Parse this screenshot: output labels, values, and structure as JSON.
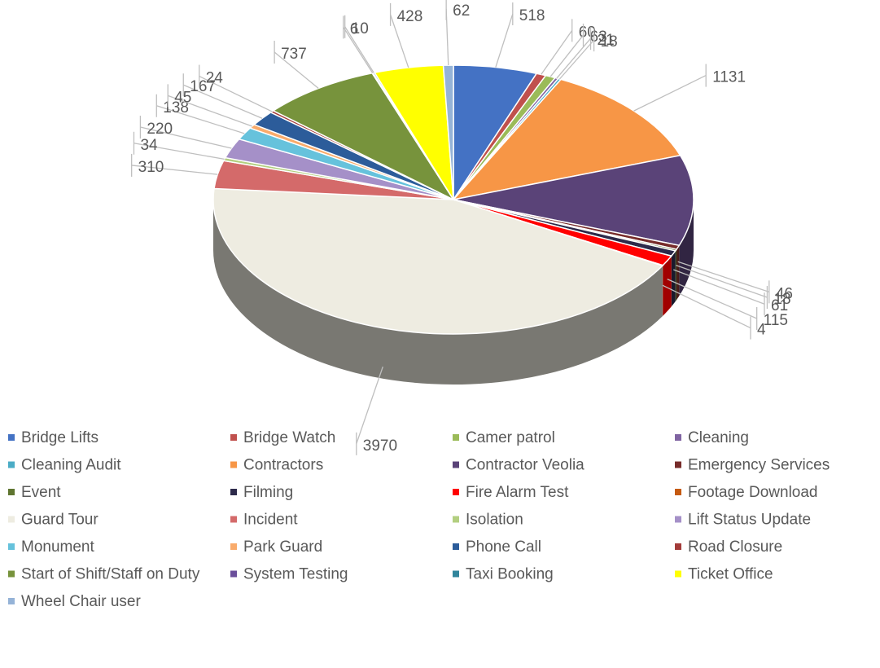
{
  "chart_data": {
    "type": "pie",
    "categories": [
      "Bridge Lifts",
      "Bridge Watch",
      "Camer patrol",
      "Cleaning",
      "Cleaning Audit",
      "Contractors",
      "Contractor Veolia",
      "Emergency Services",
      "Event",
      "Filming",
      "Fire Alarm Test",
      "Footage Download",
      "Guard Tour",
      "Incident",
      "Isolation",
      "Lift Status Update",
      "Monument",
      "Park Guard",
      "Phone Call",
      "Road Closure",
      "Start of Shift/Staff on Duty",
      "System Testing",
      "Taxi Booking",
      "Ticket Office",
      "Wheel Chair user"
    ],
    "values": [
      518,
      60,
      63,
      21,
      18,
      1131,
      1000,
      46,
      18,
      61,
      115,
      4,
      3970,
      310,
      34,
      220,
      138,
      45,
      167,
      24,
      737,
      6,
      10,
      428,
      62
    ],
    "value_labels": [
      "518",
      "60",
      "63",
      "21",
      "18",
      "1131",
      null,
      "46",
      "18",
      "61",
      "115",
      "4",
      "3970",
      "310",
      "34",
      "220",
      "138",
      "45",
      "167",
      "24",
      "737",
      "6",
      "10",
      "428",
      "62"
    ],
    "colors": [
      "#4472c4",
      "#c0504d",
      "#9bbb59",
      "#8064a2",
      "#4bacc6",
      "#f79646",
      "#5a4378",
      "#772c2a",
      "#5f7530",
      "#2c2a4a",
      "#ff0000",
      "#c55a11",
      "#eeece1",
      "#d46a6a",
      "#b3cf80",
      "#a590c8",
      "#66c2dc",
      "#f9ab6b",
      "#2c5c9a",
      "#a33b39",
      "#77933c",
      "#6b4f9b",
      "#31859c",
      "#ffff00",
      "#95b3d7"
    ],
    "legend": "bottom"
  }
}
